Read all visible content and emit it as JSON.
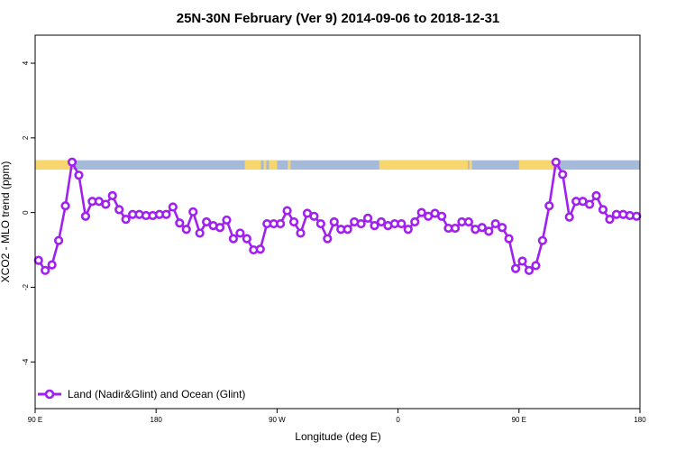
{
  "chart_data": {
    "type": "line",
    "title": "25N-30N February (Ver 9)   2014-09-06 to 2018-12-31",
    "xlabel": "Longitude (deg E)",
    "ylabel": "XCO2 - MLO trend (ppm)",
    "x_ticks": [
      {
        "value": 90,
        "label": "90 E"
      },
      {
        "value": 180,
        "label": "180"
      },
      {
        "value": 270,
        "label": "90 W"
      },
      {
        "value": 360,
        "label": "0"
      },
      {
        "value": 450,
        "label": "90 E"
      },
      {
        "value": 540,
        "label": "180"
      }
    ],
    "y_ticks": [
      {
        "value": 4,
        "label": "4"
      },
      {
        "value": 2,
        "label": "2"
      },
      {
        "value": 0,
        "label": "0"
      },
      {
        "value": -2,
        "label": "-2"
      },
      {
        "value": -4,
        "label": "-4"
      }
    ],
    "xlim": [
      90,
      540
    ],
    "ylim": [
      -5.25,
      4.75
    ],
    "grid": false,
    "legend_position": "bottom-left",
    "land_ocean_band": {
      "y_range": [
        1.15,
        1.4
      ],
      "ocean_color": "#a4bad8",
      "land_color": "#f7d66e",
      "land_segments": [
        [
          90,
          118
        ],
        [
          246,
          258
        ],
        [
          260,
          262
        ],
        [
          264,
          270
        ],
        [
          278,
          280
        ],
        [
          346,
          412
        ],
        [
          413,
          415
        ],
        [
          450,
          478
        ]
      ]
    },
    "series": [
      {
        "name": "Land (Nadir&Glint) and Ocean (Glint)",
        "color": "#a020f0",
        "x": [
          92.5,
          97.5,
          102.5,
          107.5,
          112.5,
          117.5,
          122.5,
          127.5,
          132.5,
          137.5,
          142.5,
          147.5,
          152.5,
          157.5,
          162.5,
          167.5,
          172.5,
          177.5,
          182.5,
          187.5,
          192.5,
          197.5,
          202.5,
          207.5,
          212.5,
          217.5,
          222.5,
          227.5,
          232.5,
          237.5,
          242.5,
          247.5,
          252.5,
          257.5,
          262.5,
          267.5,
          272.5,
          277.5,
          282.5,
          287.5,
          292.5,
          297.5,
          302.5,
          307.5,
          312.5,
          317.5,
          322.5,
          327.5,
          332.5,
          337.5,
          342.5,
          347.5,
          352.5,
          357.5,
          362.5,
          367.5,
          372.5,
          377.5,
          382.5,
          387.5,
          392.5,
          397.5,
          402.5,
          407.5,
          412.5,
          417.5,
          422.5,
          427.5,
          432.5,
          437.5,
          442.5,
          447.5,
          452.5,
          457.5,
          462.5,
          467.5,
          472.5,
          477.5,
          482.5,
          487.5,
          492.5,
          497.5,
          502.5,
          507.5,
          512.5,
          517.5,
          522.5,
          527.5,
          532.5,
          537.5
        ],
        "y": [
          -1.28,
          -1.55,
          -1.4,
          -0.75,
          0.18,
          1.35,
          1.0,
          -0.1,
          0.3,
          0.3,
          0.22,
          0.45,
          0.08,
          -0.18,
          -0.05,
          -0.05,
          -0.08,
          -0.08,
          -0.05,
          -0.05,
          0.15,
          -0.28,
          -0.45,
          0.02,
          -0.55,
          -0.25,
          -0.35,
          -0.4,
          -0.2,
          -0.7,
          -0.55,
          -0.7,
          -1.0,
          -0.98,
          -0.3,
          -0.3,
          -0.3,
          0.05,
          -0.25,
          -0.55,
          -0.02,
          -0.1,
          -0.3,
          -0.7,
          -0.25,
          -0.45,
          -0.45,
          -0.25,
          -0.3,
          -0.15,
          -0.35,
          -0.25,
          -0.35,
          -0.3,
          -0.3,
          -0.45,
          -0.25,
          0.0,
          -0.1,
          -0.02,
          -0.1,
          -0.42,
          -0.42,
          -0.25,
          -0.25,
          -0.45,
          -0.4,
          -0.5,
          -0.3,
          -0.4,
          -0.7,
          -1.5,
          -1.3,
          -1.55,
          -1.42,
          -0.75,
          0.18,
          1.35,
          1.02,
          -0.12,
          0.3,
          0.3,
          0.22,
          0.45,
          0.08,
          -0.18,
          -0.05,
          -0.05,
          -0.08,
          -0.1
        ]
      }
    ]
  }
}
